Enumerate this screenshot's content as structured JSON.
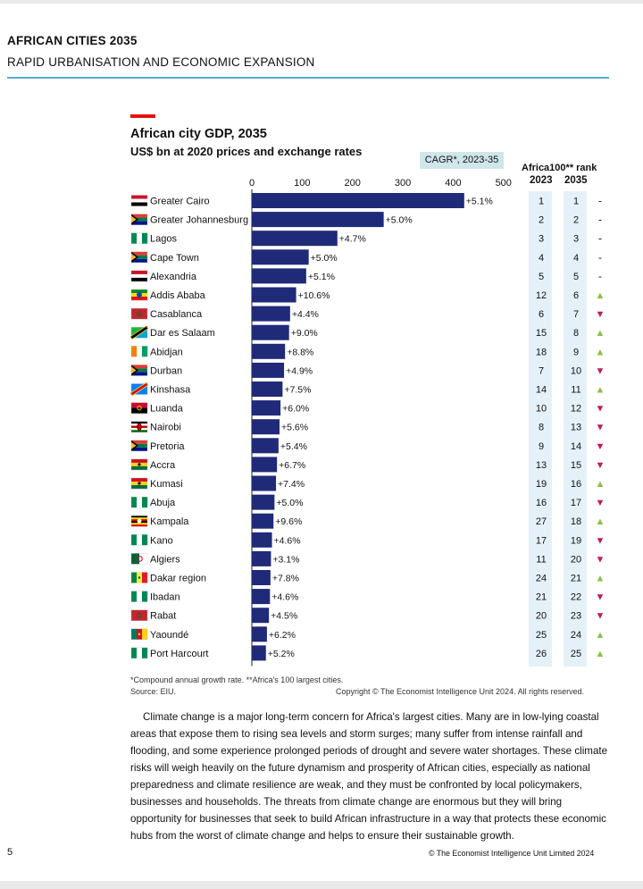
{
  "header": {
    "title": "AFRICAN CITIES 2035",
    "subtitle": "RAPID URBANISATION AND ECONOMIC EXPANSION"
  },
  "chart_data": {
    "type": "bar",
    "orientation": "horizontal",
    "title": "African city GDP, 2035",
    "subtitle": "US$ bn at 2020 prices and exchange rates",
    "xlim": [
      0,
      500
    ],
    "xticks": [
      "0",
      "100",
      "200",
      "300",
      "400",
      "500"
    ],
    "cagr_label": "CAGR*, 2023-35",
    "rank_title": "Africa100** rank",
    "rank_headers": [
      "2023",
      "2035"
    ],
    "bar_color": "#1f2a78",
    "up_color": "#8cbe3f",
    "down_color": "#c2185b",
    "categories": [
      "Greater Cairo",
      "Greater Johannesburg",
      "Lagos",
      "Cape Town",
      "Alexandria",
      "Addis Ababa",
      "Casablanca",
      "Dar es Salaam",
      "Abidjan",
      "Durban",
      "Kinshasa",
      "Luanda",
      "Nairobi",
      "Pretoria",
      "Accra",
      "Kumasi",
      "Abuja",
      "Kampala",
      "Kano",
      "Algiers",
      "Dakar region",
      "Ibadan",
      "Rabat",
      "Yaoundé",
      "Port Harcourt"
    ],
    "values": [
      422,
      262,
      170,
      113,
      108,
      88,
      76,
      74,
      66,
      64,
      61,
      57,
      55,
      53,
      50,
      48,
      45,
      43,
      40,
      38,
      37,
      36,
      34,
      30,
      28
    ],
    "cagr": [
      "+5.1%",
      "+5.0%",
      "+4.7%",
      "+5.0%",
      "+5.1%",
      "+10.6%",
      "+4.4%",
      "+9.0%",
      "+8.8%",
      "+4.9%",
      "+7.5%",
      "+6.0%",
      "+5.6%",
      "+5.4%",
      "+6.7%",
      "+7.4%",
      "+5.0%",
      "+9.6%",
      "+4.6%",
      "+3.1%",
      "+7.8%",
      "+4.6%",
      "+4.5%",
      "+6.2%",
      "+5.2%"
    ],
    "rank_2023": [
      "1",
      "2",
      "3",
      "4",
      "5",
      "12",
      "6",
      "15",
      "18",
      "7",
      "14",
      "10",
      "8",
      "9",
      "13",
      "19",
      "16",
      "27",
      "17",
      "11",
      "24",
      "21",
      "20",
      "25",
      "26"
    ],
    "rank_2035": [
      "1",
      "2",
      "3",
      "4",
      "5",
      "6",
      "7",
      "8",
      "9",
      "10",
      "11",
      "12",
      "13",
      "14",
      "15",
      "16",
      "17",
      "18",
      "19",
      "20",
      "21",
      "22",
      "23",
      "24",
      "25"
    ],
    "change": [
      "same",
      "same",
      "same",
      "same",
      "same",
      "up",
      "down",
      "up",
      "up",
      "down",
      "up",
      "down",
      "down",
      "down",
      "down",
      "up",
      "down",
      "up",
      "down",
      "down",
      "up",
      "down",
      "down",
      "up",
      "up"
    ],
    "change_symbols": {
      "same": "-",
      "up": "▲",
      "down": "▼"
    },
    "flags": [
      "egypt",
      "south-africa",
      "nigeria",
      "south-africa",
      "egypt",
      "ethiopia",
      "morocco",
      "tanzania",
      "cote-divoire",
      "south-africa",
      "dr-congo",
      "angola",
      "kenya",
      "south-africa",
      "ghana",
      "ghana",
      "nigeria",
      "uganda",
      "nigeria",
      "algeria",
      "senegal",
      "nigeria",
      "morocco",
      "cameroon",
      "nigeria"
    ],
    "footnote": "*Compound annual growth rate. **Africa's 100 largest cities.",
    "source": "Source: EIU.",
    "copyright": "Copyright © The Economist Intelligence Unit 2024. All rights reserved."
  },
  "body": {
    "paragraph": "Climate change is a major long-term concern for Africa's largest cities. Many are in low-lying coastal areas that expose them to rising sea levels and storm surges; many suffer from intense rainfall and flooding, and some experience prolonged periods of drought and severe water shortages. These climate risks will weigh heavily on the future dynamism and prosperity of African cities, especially as national preparedness and climate resilience are weak, and they must be confronted by local policymakers, businesses and households. The threats from climate change are enormous but they will bring opportunity for businesses that seek to build African infrastructure in a way that protects these economic hubs from the worst of climate change and helps to ensure their sustainable growth."
  },
  "footer": {
    "page_number": "5",
    "copyright": "© The Economist Intelligence Unit Limited 2024"
  }
}
